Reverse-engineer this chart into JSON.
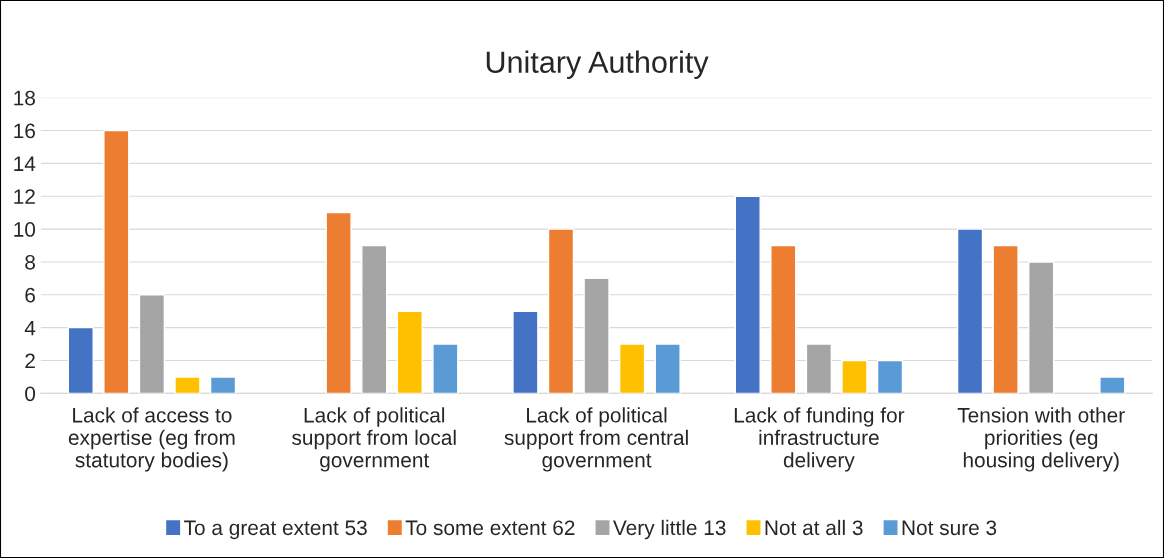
{
  "chart_data": {
    "type": "bar",
    "title": "Unitary Authority",
    "categories": [
      "Lack of access to\nexpertise (eg from\nstatutory bodies)",
      "Lack of political\nsupport from local\ngovernment",
      "Lack of political\nsupport from central\ngovernment",
      "Lack of funding for\ninfrastructure\ndelivery",
      "Tension with other\npriorities (eg\nhousing delivery)"
    ],
    "series": [
      {
        "name": "To a great extent 53",
        "color": "#4472c4",
        "values": [
          4,
          null,
          5,
          12,
          10
        ]
      },
      {
        "name": "To some extent 62",
        "color": "#ed7d31",
        "values": [
          16,
          11,
          10,
          9,
          9
        ]
      },
      {
        "name": "Very little 13",
        "color": "#a5a5a5",
        "values": [
          6,
          9,
          7,
          3,
          8
        ]
      },
      {
        "name": "Not at all 3",
        "color": "#ffc000",
        "values": [
          1,
          5,
          3,
          2,
          null
        ]
      },
      {
        "name": "Not sure 3",
        "color": "#5b9bd5",
        "values": [
          1,
          3,
          3,
          2,
          1
        ]
      }
    ],
    "ylim": [
      0,
      18
    ],
    "yticks": [
      0,
      2,
      4,
      6,
      8,
      10,
      12,
      14,
      16,
      18
    ],
    "grid": "y",
    "legend": "bottom"
  }
}
